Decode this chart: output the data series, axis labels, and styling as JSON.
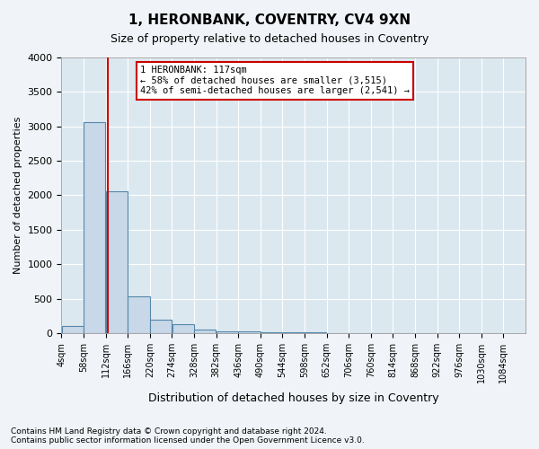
{
  "title": "1, HERONBANK, COVENTRY, CV4 9XN",
  "subtitle": "Size of property relative to detached houses in Coventry",
  "xlabel": "Distribution of detached houses by size in Coventry",
  "ylabel": "Number of detached properties",
  "bar_color": "#c8d8e8",
  "bar_edge_color": "#5588aa",
  "background_color": "#dce8f0",
  "fig_background_color": "#f0f4f8",
  "grid_color": "#ffffff",
  "bin_starts": [
    4,
    58,
    112,
    166,
    220,
    274,
    328,
    382,
    436,
    490,
    544,
    598,
    652,
    706,
    760,
    814,
    868,
    922,
    976,
    1030
  ],
  "bin_width": 54,
  "bar_heights": [
    100,
    3060,
    2060,
    530,
    200,
    135,
    55,
    30,
    20,
    15,
    10,
    8,
    5,
    3,
    2,
    1,
    1,
    0,
    0,
    0
  ],
  "property_size": 117,
  "red_line_color": "#cc0000",
  "annotation_text": "1 HERONBANK: 117sqm\n← 58% of detached houses are smaller (3,515)\n42% of semi-detached houses are larger (2,541) →",
  "annotation_box_color": "#cc0000",
  "ylim": [
    0,
    4000
  ],
  "xlim": [
    4,
    1138
  ],
  "tick_labels": [
    "4sqm",
    "58sqm",
    "112sqm",
    "166sqm",
    "220sqm",
    "274sqm",
    "328sqm",
    "382sqm",
    "436sqm",
    "490sqm",
    "544sqm",
    "598sqm",
    "652sqm",
    "706sqm",
    "760sqm",
    "814sqm",
    "868sqm",
    "922sqm",
    "976sqm",
    "1030sqm",
    "1084sqm"
  ],
  "tick_positions": [
    4,
    58,
    112,
    166,
    220,
    274,
    328,
    382,
    436,
    490,
    544,
    598,
    652,
    706,
    760,
    814,
    868,
    922,
    976,
    1030,
    1084
  ],
  "footnote1": "Contains HM Land Registry data © Crown copyright and database right 2024.",
  "footnote2": "Contains public sector information licensed under the Open Government Licence v3.0."
}
